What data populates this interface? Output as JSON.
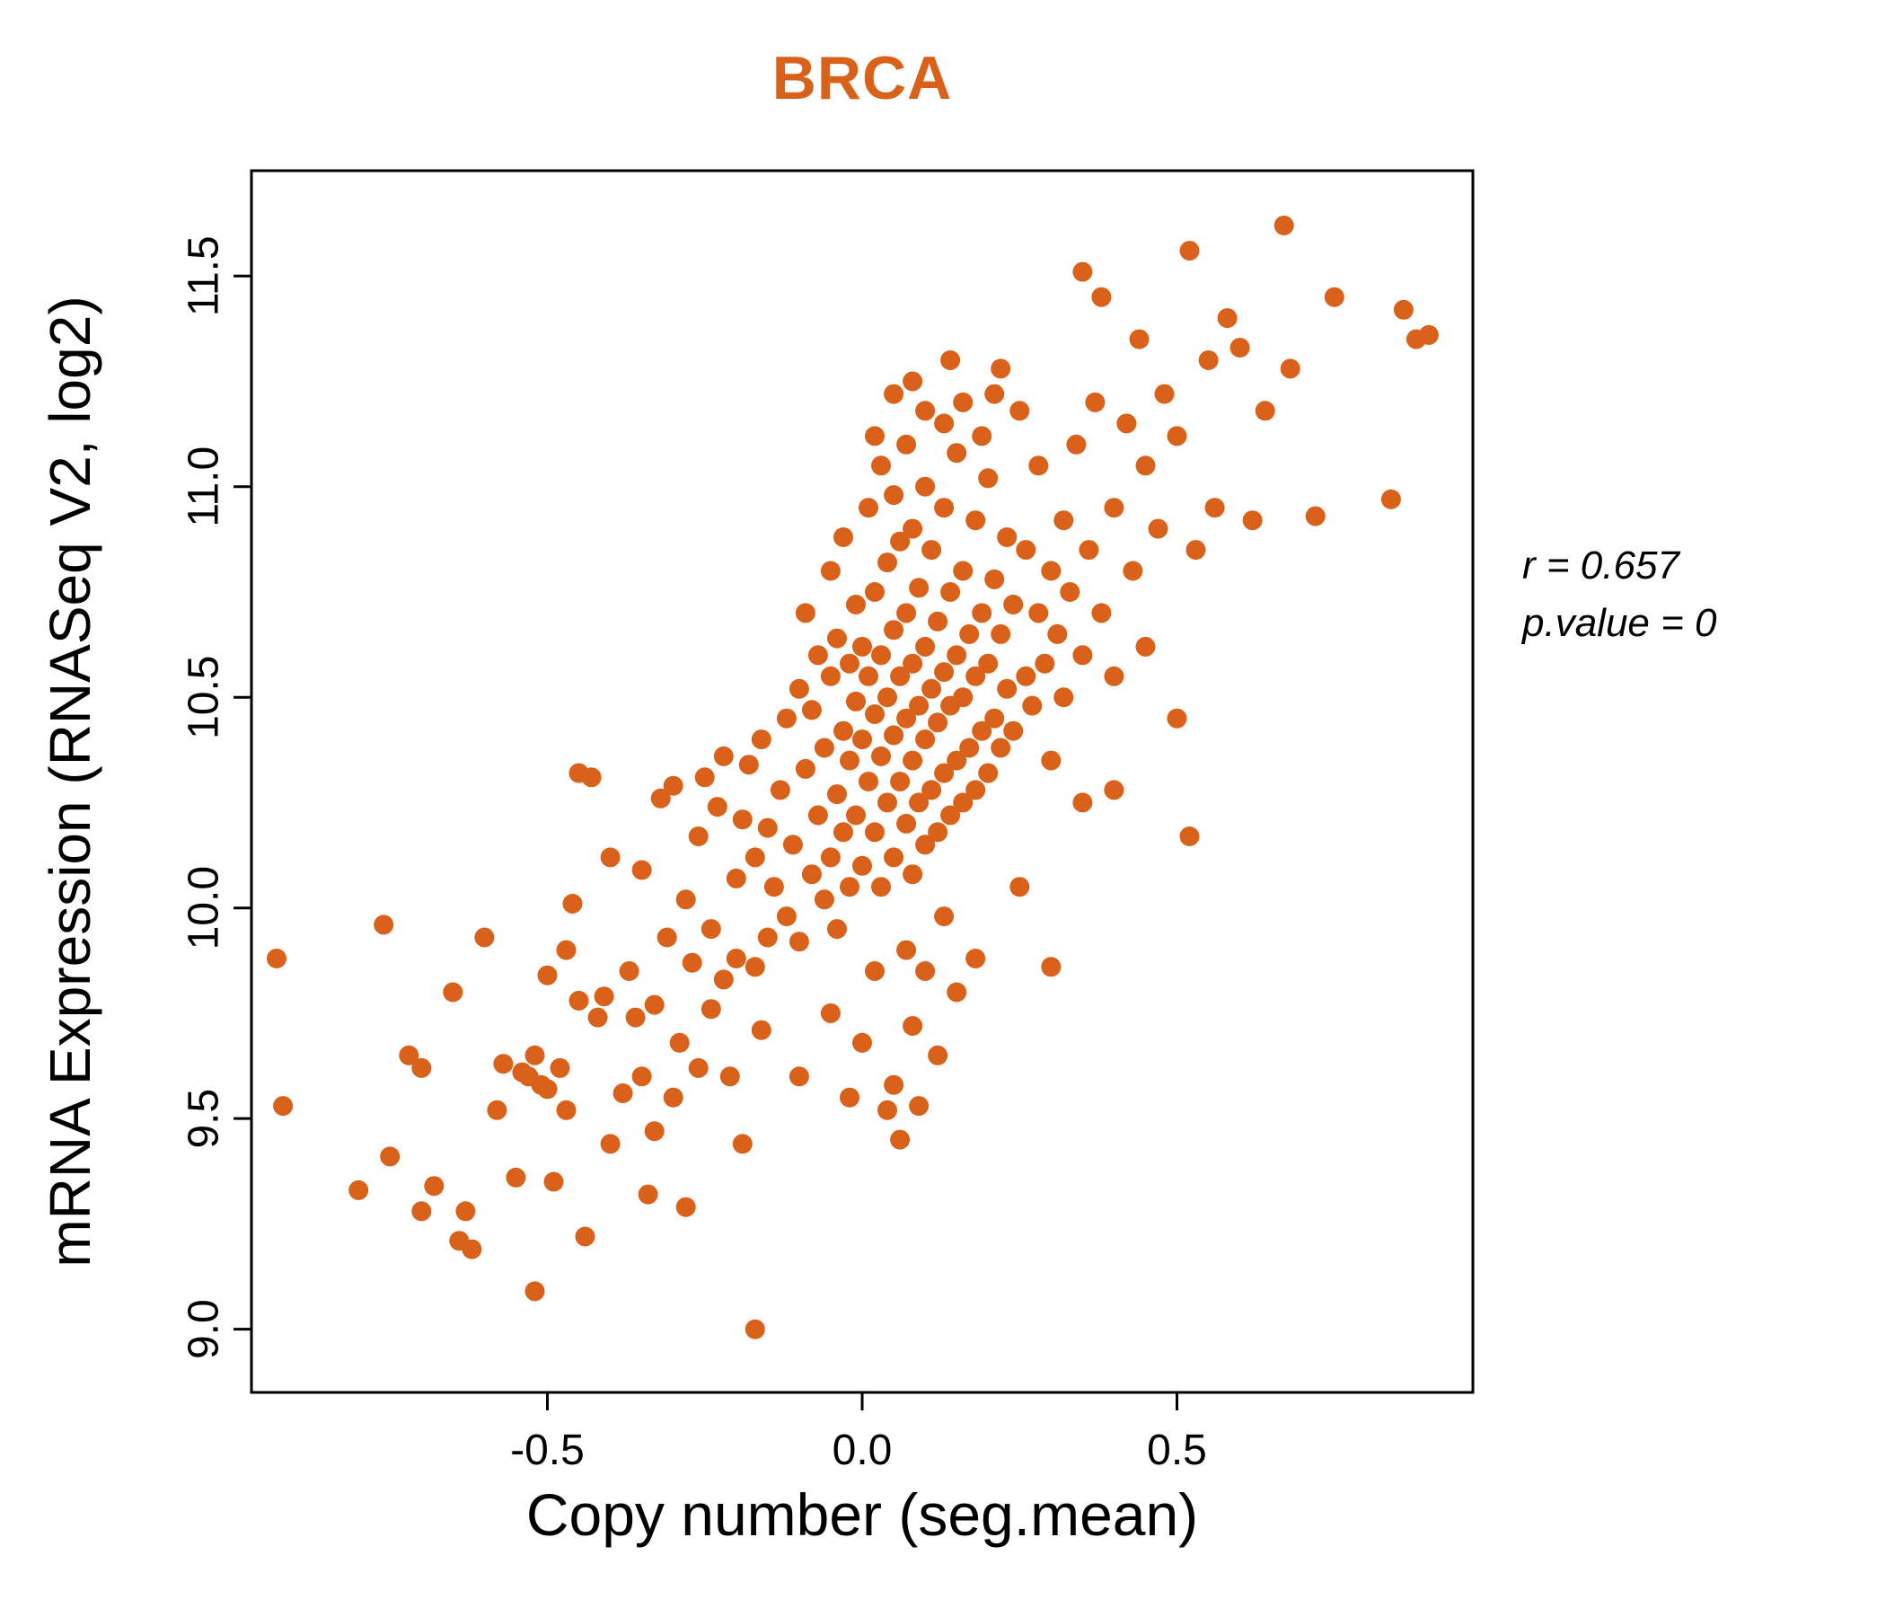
{
  "title": {
    "text": "BRCA",
    "color": "#D9611A"
  },
  "annotation": {
    "line1": "r = 0.657",
    "line2": "p.value = 0"
  },
  "chart_data": {
    "type": "scatter",
    "title": "BRCA",
    "xlabel": "Copy number (seg.mean)",
    "ylabel": "mRNA Expression (RNASeq V2, log2)",
    "xlim": [
      -0.97,
      0.97
    ],
    "ylim": [
      8.85,
      11.75
    ],
    "x_ticks": {
      "values": [
        -0.5,
        0.0,
        0.5
      ],
      "labels": [
        "-0.5",
        "0.0",
        "0.5"
      ]
    },
    "y_ticks": {
      "values": [
        9.0,
        9.5,
        10.0,
        10.5,
        11.0,
        11.5
      ],
      "labels": [
        "9.0",
        "9.5",
        "10.0",
        "10.5",
        "11.0",
        "11.5"
      ]
    },
    "point_color": "#D9611A",
    "grid": false,
    "legend": "none",
    "stats": {
      "r": 0.657,
      "p_value": 0
    },
    "points": [
      [
        -0.93,
        9.88
      ],
      [
        -0.92,
        9.53
      ],
      [
        -0.8,
        9.33
      ],
      [
        -0.76,
        9.96
      ],
      [
        -0.75,
        9.41
      ],
      [
        -0.72,
        9.65
      ],
      [
        -0.7,
        9.62
      ],
      [
        -0.7,
        9.28
      ],
      [
        -0.68,
        9.34
      ],
      [
        -0.65,
        9.8
      ],
      [
        -0.64,
        9.21
      ],
      [
        -0.63,
        9.28
      ],
      [
        -0.62,
        9.19
      ],
      [
        -0.6,
        9.93
      ],
      [
        -0.58,
        9.52
      ],
      [
        -0.57,
        9.63
      ],
      [
        -0.55,
        9.36
      ],
      [
        -0.54,
        9.61
      ],
      [
        -0.53,
        9.6
      ],
      [
        -0.52,
        9.09
      ],
      [
        -0.52,
        9.65
      ],
      [
        -0.51,
        9.58
      ],
      [
        -0.5,
        9.84
      ],
      [
        -0.5,
        9.57
      ],
      [
        -0.49,
        9.35
      ],
      [
        -0.48,
        9.62
      ],
      [
        -0.47,
        9.9
      ],
      [
        -0.47,
        9.52
      ],
      [
        -0.46,
        10.01
      ],
      [
        -0.45,
        9.78
      ],
      [
        -0.45,
        10.32
      ],
      [
        -0.44,
        9.22
      ],
      [
        -0.43,
        10.31
      ],
      [
        -0.42,
        9.74
      ],
      [
        -0.41,
        9.79
      ],
      [
        -0.4,
        9.44
      ],
      [
        -0.4,
        10.12
      ],
      [
        -0.38,
        9.56
      ],
      [
        -0.37,
        9.85
      ],
      [
        -0.36,
        9.74
      ],
      [
        -0.35,
        10.09
      ],
      [
        -0.35,
        9.6
      ],
      [
        -0.34,
        9.32
      ],
      [
        -0.33,
        9.77
      ],
      [
        -0.33,
        9.47
      ],
      [
        -0.32,
        10.26
      ],
      [
        -0.31,
        9.93
      ],
      [
        -0.3,
        9.55
      ],
      [
        -0.3,
        10.29
      ],
      [
        -0.29,
        9.68
      ],
      [
        -0.28,
        10.02
      ],
      [
        -0.28,
        9.29
      ],
      [
        -0.27,
        9.87
      ],
      [
        -0.26,
        10.17
      ],
      [
        -0.26,
        9.62
      ],
      [
        -0.25,
        10.31
      ],
      [
        -0.24,
        9.95
      ],
      [
        -0.24,
        9.76
      ],
      [
        -0.23,
        10.24
      ],
      [
        -0.22,
        9.83
      ],
      [
        -0.22,
        10.36
      ],
      [
        -0.21,
        9.6
      ],
      [
        -0.2,
        10.07
      ],
      [
        -0.2,
        9.88
      ],
      [
        -0.19,
        10.21
      ],
      [
        -0.19,
        9.44
      ],
      [
        -0.18,
        10.34
      ],
      [
        -0.17,
        9.0
      ],
      [
        -0.17,
        10.12
      ],
      [
        -0.17,
        9.86
      ],
      [
        -0.16,
        10.4
      ],
      [
        -0.16,
        9.71
      ],
      [
        -0.15,
        10.19
      ],
      [
        -0.15,
        9.93
      ],
      [
        -0.14,
        10.05
      ],
      [
        -0.13,
        10.28
      ],
      [
        -0.12,
        9.98
      ],
      [
        -0.12,
        10.45
      ],
      [
        -0.11,
        10.15
      ],
      [
        -0.1,
        10.52
      ],
      [
        -0.1,
        9.92
      ],
      [
        -0.1,
        9.6
      ],
      [
        -0.09,
        10.33
      ],
      [
        -0.09,
        10.7
      ],
      [
        -0.08,
        10.08
      ],
      [
        -0.08,
        10.47
      ],
      [
        -0.07,
        10.22
      ],
      [
        -0.07,
        10.6
      ],
      [
        -0.06,
        10.02
      ],
      [
        -0.06,
        10.38
      ],
      [
        -0.05,
        10.55
      ],
      [
        -0.05,
        10.12
      ],
      [
        -0.05,
        10.8
      ],
      [
        -0.05,
        9.75
      ],
      [
        -0.04,
        10.27
      ],
      [
        -0.04,
        10.64
      ],
      [
        -0.04,
        9.95
      ],
      [
        -0.03,
        10.42
      ],
      [
        -0.03,
        10.18
      ],
      [
        -0.03,
        10.88
      ],
      [
        -0.02,
        10.35
      ],
      [
        -0.02,
        10.58
      ],
      [
        -0.02,
        10.05
      ],
      [
        -0.02,
        9.55
      ],
      [
        -0.01,
        10.49
      ],
      [
        -0.01,
        10.22
      ],
      [
        -0.01,
        10.72
      ],
      [
        0.0,
        10.1
      ],
      [
        0.0,
        10.4
      ],
      [
        0.0,
        10.62
      ],
      [
        0.0,
        9.68
      ],
      [
        0.01,
        10.3
      ],
      [
        0.01,
        10.55
      ],
      [
        0.01,
        10.95
      ],
      [
        0.02,
        10.18
      ],
      [
        0.02,
        10.46
      ],
      [
        0.02,
        10.75
      ],
      [
        0.02,
        11.12
      ],
      [
        0.02,
        9.85
      ],
      [
        0.03,
        10.05
      ],
      [
        0.03,
        10.36
      ],
      [
        0.03,
        10.6
      ],
      [
        0.03,
        11.05
      ],
      [
        0.04,
        10.25
      ],
      [
        0.04,
        10.5
      ],
      [
        0.04,
        10.82
      ],
      [
        0.04,
        9.52
      ],
      [
        0.05,
        10.12
      ],
      [
        0.05,
        10.41
      ],
      [
        0.05,
        10.66
      ],
      [
        0.05,
        10.98
      ],
      [
        0.05,
        11.22
      ],
      [
        0.05,
        9.58
      ],
      [
        0.06,
        10.3
      ],
      [
        0.06,
        10.55
      ],
      [
        0.06,
        10.87
      ],
      [
        0.06,
        9.45
      ],
      [
        0.07,
        10.2
      ],
      [
        0.07,
        10.45
      ],
      [
        0.07,
        10.7
      ],
      [
        0.07,
        11.1
      ],
      [
        0.07,
        9.9
      ],
      [
        0.08,
        10.08
      ],
      [
        0.08,
        10.35
      ],
      [
        0.08,
        10.58
      ],
      [
        0.08,
        10.9
      ],
      [
        0.08,
        11.25
      ],
      [
        0.08,
        9.72
      ],
      [
        0.09,
        10.25
      ],
      [
        0.09,
        10.48
      ],
      [
        0.09,
        10.76
      ],
      [
        0.09,
        9.53
      ],
      [
        0.1,
        10.15
      ],
      [
        0.1,
        10.4
      ],
      [
        0.1,
        10.62
      ],
      [
        0.1,
        11.0
      ],
      [
        0.1,
        11.18
      ],
      [
        0.1,
        9.85
      ],
      [
        0.11,
        10.28
      ],
      [
        0.11,
        10.52
      ],
      [
        0.11,
        10.85
      ],
      [
        0.12,
        10.18
      ],
      [
        0.12,
        10.44
      ],
      [
        0.12,
        10.68
      ],
      [
        0.12,
        9.65
      ],
      [
        0.13,
        10.32
      ],
      [
        0.13,
        10.56
      ],
      [
        0.13,
        10.95
      ],
      [
        0.13,
        11.15
      ],
      [
        0.13,
        9.98
      ],
      [
        0.14,
        10.22
      ],
      [
        0.14,
        10.48
      ],
      [
        0.14,
        10.75
      ],
      [
        0.14,
        11.3
      ],
      [
        0.15,
        10.35
      ],
      [
        0.15,
        10.6
      ],
      [
        0.15,
        11.08
      ],
      [
        0.15,
        9.8
      ],
      [
        0.16,
        10.25
      ],
      [
        0.16,
        10.5
      ],
      [
        0.16,
        10.8
      ],
      [
        0.16,
        11.2
      ],
      [
        0.17,
        10.38
      ],
      [
        0.17,
        10.65
      ],
      [
        0.18,
        10.28
      ],
      [
        0.18,
        10.55
      ],
      [
        0.18,
        10.92
      ],
      [
        0.18,
        9.88
      ],
      [
        0.19,
        10.42
      ],
      [
        0.19,
        10.7
      ],
      [
        0.19,
        11.12
      ],
      [
        0.2,
        10.32
      ],
      [
        0.2,
        10.58
      ],
      [
        0.2,
        11.02
      ],
      [
        0.21,
        10.45
      ],
      [
        0.21,
        10.78
      ],
      [
        0.21,
        11.22
      ],
      [
        0.22,
        10.38
      ],
      [
        0.22,
        10.65
      ],
      [
        0.22,
        11.28
      ],
      [
        0.23,
        10.52
      ],
      [
        0.23,
        10.88
      ],
      [
        0.24,
        10.42
      ],
      [
        0.24,
        10.72
      ],
      [
        0.25,
        11.18
      ],
      [
        0.25,
        10.05
      ],
      [
        0.26,
        10.55
      ],
      [
        0.26,
        10.85
      ],
      [
        0.27,
        10.48
      ],
      [
        0.28,
        10.7
      ],
      [
        0.28,
        11.05
      ],
      [
        0.29,
        10.58
      ],
      [
        0.3,
        10.8
      ],
      [
        0.3,
        10.35
      ],
      [
        0.3,
        9.86
      ],
      [
        0.31,
        10.65
      ],
      [
        0.32,
        10.92
      ],
      [
        0.32,
        10.5
      ],
      [
        0.33,
        10.75
      ],
      [
        0.34,
        11.1
      ],
      [
        0.35,
        10.6
      ],
      [
        0.35,
        11.51
      ],
      [
        0.35,
        10.25
      ],
      [
        0.36,
        10.85
      ],
      [
        0.37,
        11.2
      ],
      [
        0.38,
        11.45
      ],
      [
        0.38,
        10.7
      ],
      [
        0.4,
        10.95
      ],
      [
        0.4,
        10.55
      ],
      [
        0.4,
        10.28
      ],
      [
        0.42,
        11.15
      ],
      [
        0.43,
        10.8
      ],
      [
        0.44,
        11.35
      ],
      [
        0.45,
        10.62
      ],
      [
        0.45,
        11.05
      ],
      [
        0.47,
        10.9
      ],
      [
        0.48,
        11.22
      ],
      [
        0.5,
        10.45
      ],
      [
        0.5,
        11.12
      ],
      [
        0.52,
        11.56
      ],
      [
        0.52,
        10.17
      ],
      [
        0.53,
        10.85
      ],
      [
        0.55,
        11.3
      ],
      [
        0.56,
        10.95
      ],
      [
        0.58,
        11.4
      ],
      [
        0.6,
        11.33
      ],
      [
        0.62,
        10.92
      ],
      [
        0.64,
        11.18
      ],
      [
        0.67,
        11.62
      ],
      [
        0.68,
        11.28
      ],
      [
        0.72,
        10.93
      ],
      [
        0.75,
        11.45
      ],
      [
        0.84,
        10.97
      ],
      [
        0.86,
        11.42
      ],
      [
        0.88,
        11.35
      ],
      [
        0.9,
        11.36
      ]
    ]
  }
}
